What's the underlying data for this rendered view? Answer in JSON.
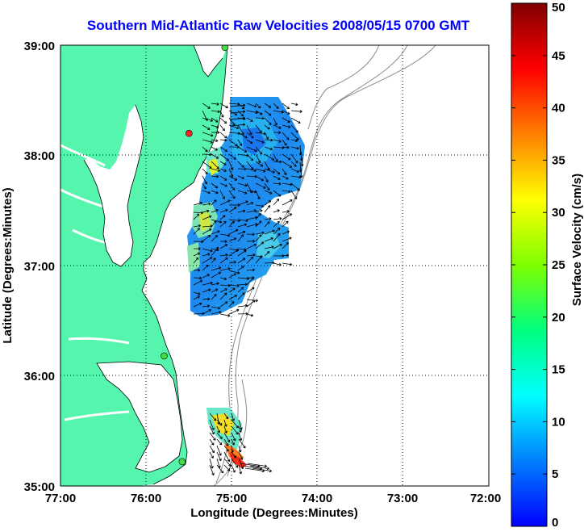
{
  "title": "Southern Mid-Atlantic Raw Velocities 2008/05/15 0700 GMT",
  "x_axis": {
    "label": "Longitude (Degrees:Minutes)",
    "ticks": [
      "77:00",
      "76:00",
      "75:00",
      "74:00",
      "73:00",
      "72:00"
    ]
  },
  "y_axis": {
    "label": "Latitude (Degrees:Minutes)",
    "ticks": [
      "39:00",
      "38:00",
      "37:00",
      "36:00",
      "35:00"
    ]
  },
  "colorbar": {
    "label": "Surface Velocity (cm/s)",
    "ticks": [
      "0",
      "5",
      "10",
      "15",
      "20",
      "25",
      "30",
      "35",
      "40",
      "45",
      "50"
    ],
    "range": [
      0,
      50
    ]
  },
  "colors": {
    "land": "#55f5ae",
    "grid": "#000000",
    "bathymetry": "#8c8c8c",
    "title": "#0000ff"
  },
  "stations": [
    {
      "lon": -75.08,
      "lat": 38.98,
      "color": "#44dd44"
    },
    {
      "lon": -75.5,
      "lat": 38.2,
      "color": "#ff2020"
    },
    {
      "lon": -75.79,
      "lat": 36.18,
      "color": "#44dd44"
    },
    {
      "lon": -75.58,
      "lat": 35.22,
      "color": "#44dd44"
    }
  ]
}
